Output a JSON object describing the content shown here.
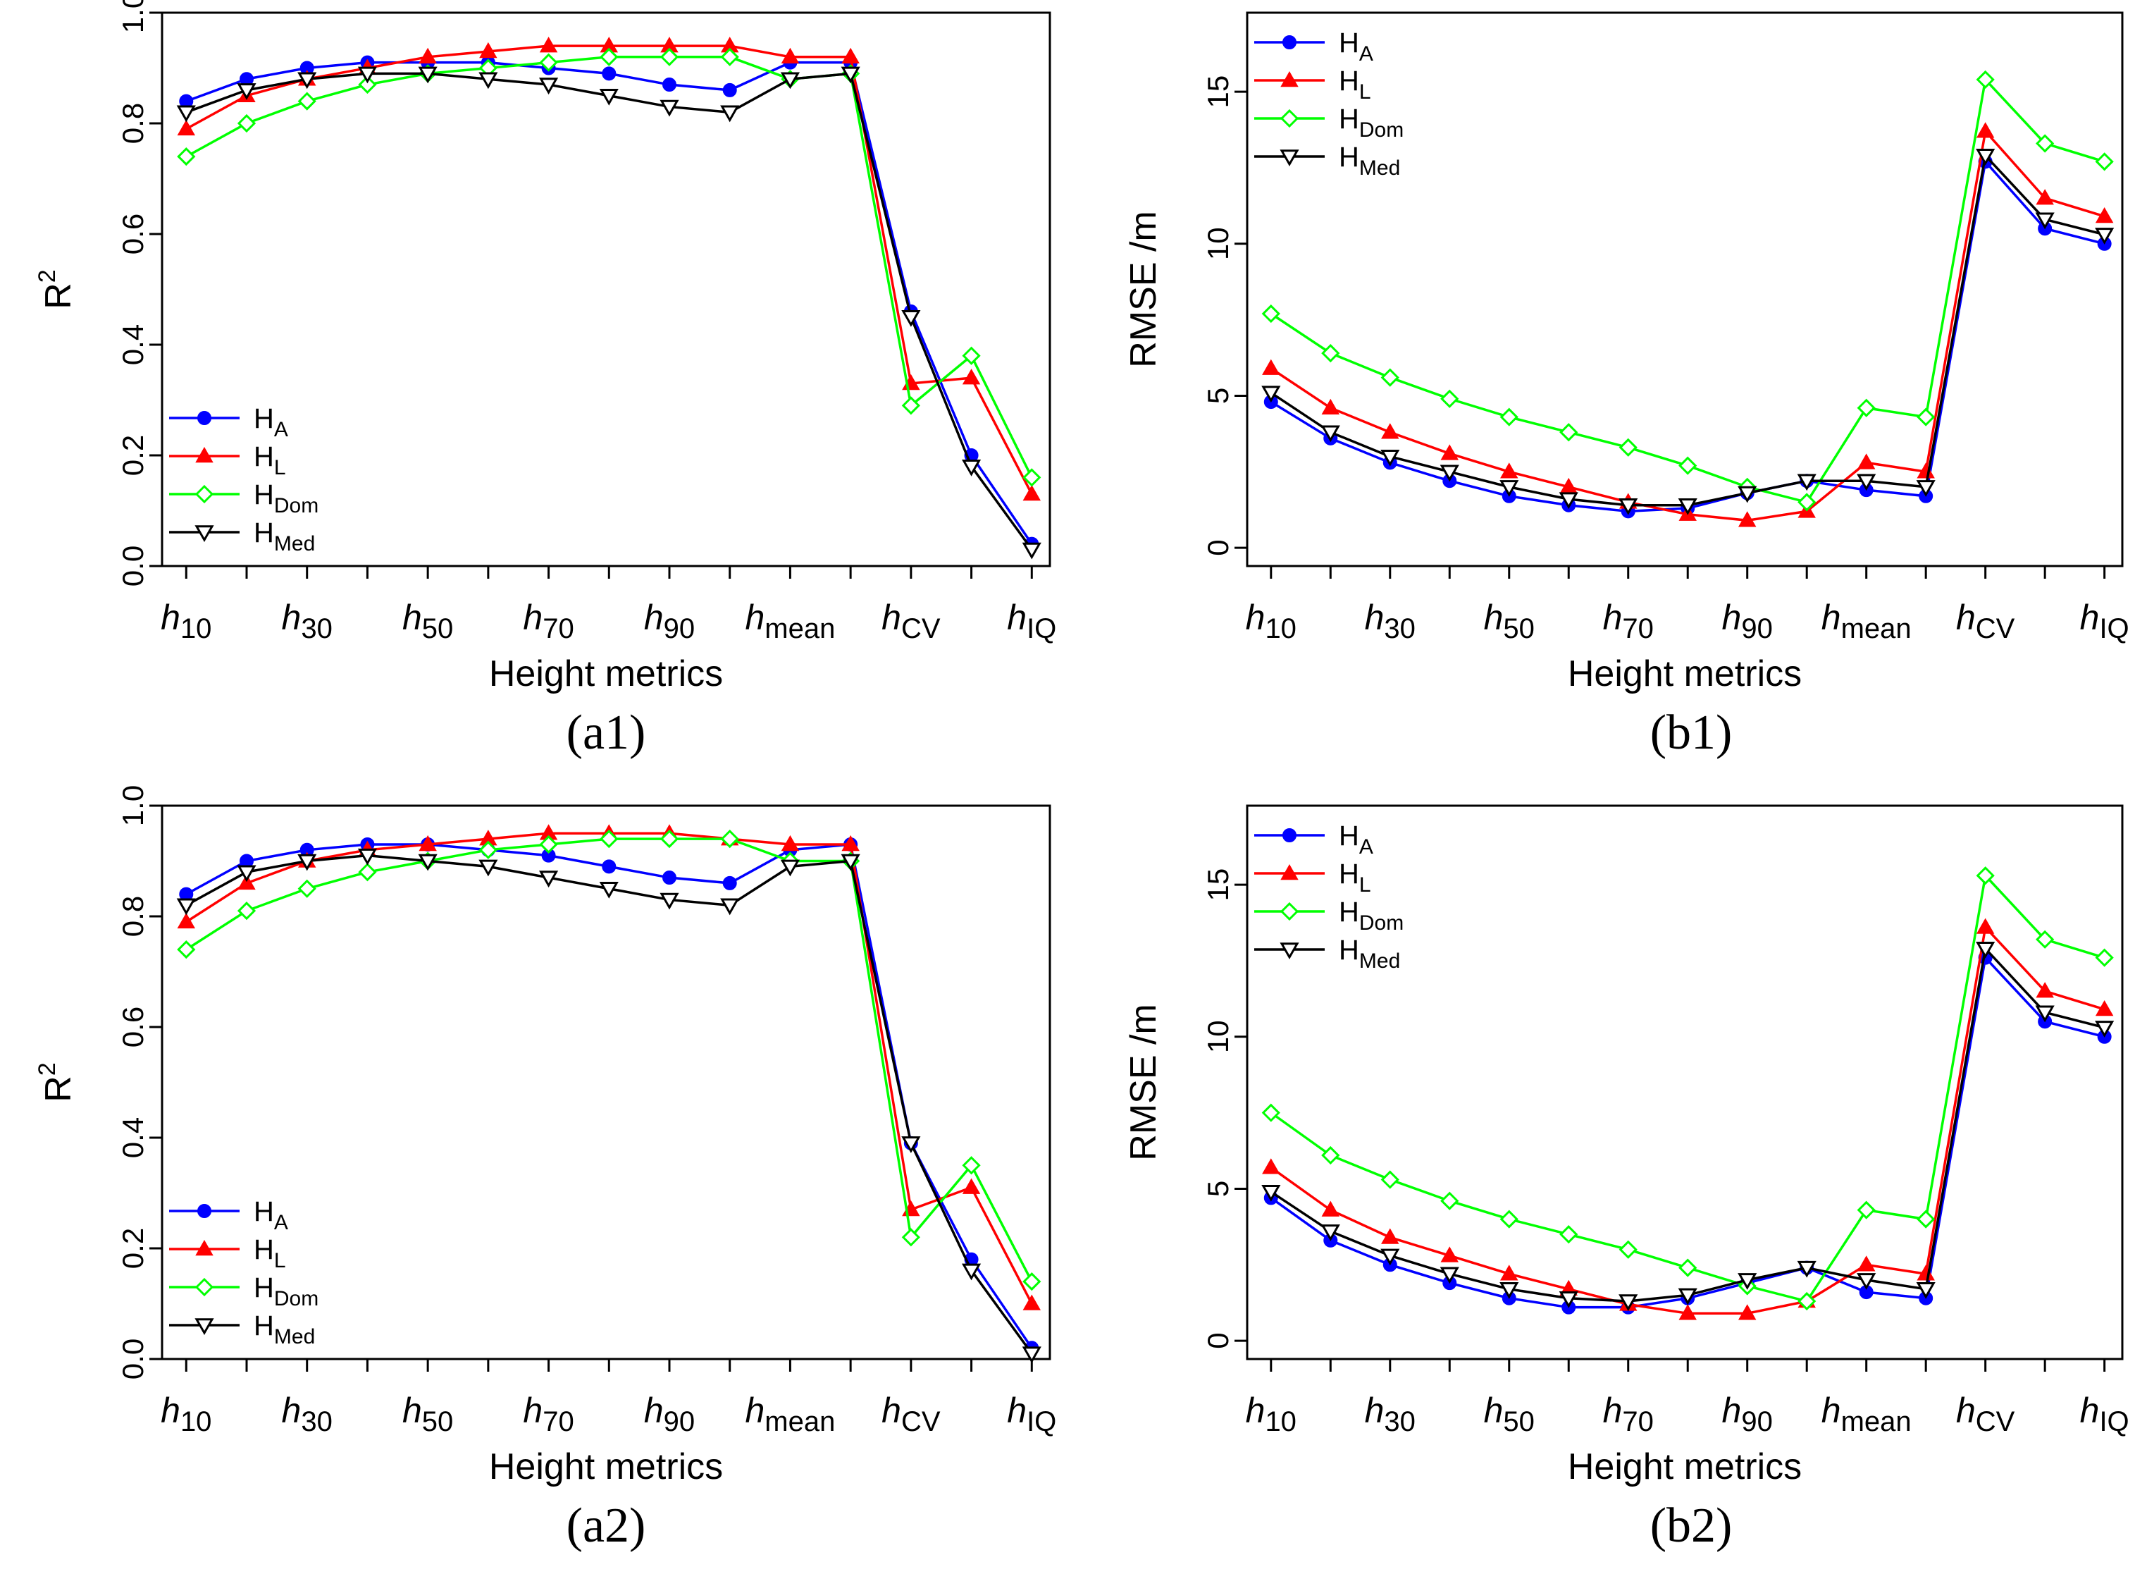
{
  "series_styles": [
    {
      "key": "HA",
      "color": "#0000FF",
      "marker": "circle"
    },
    {
      "key": "HL",
      "color": "#FF0000",
      "marker": "triangle-up"
    },
    {
      "key": "HDom",
      "color": "#00FF00",
      "marker": "diamond-open"
    },
    {
      "key": "HMed",
      "color": "#000000",
      "marker": "triangle-down-open"
    }
  ],
  "chart_data": [
    {
      "id": "a1",
      "type": "line",
      "caption": "(a1)",
      "xlabel": "Height metrics",
      "ylabel": {
        "base": "R",
        "sup": "2"
      },
      "ylim": [
        0,
        1
      ],
      "yticks": [
        "0.0",
        "0.2",
        "0.4",
        "0.6",
        "0.8",
        "1.0"
      ],
      "y_tick_values": [
        0,
        0.2,
        0.4,
        0.6,
        0.8,
        1.0
      ],
      "x": [
        1,
        2,
        3,
        4,
        5,
        6,
        7,
        8,
        9,
        10,
        11,
        12,
        13,
        14,
        15
      ],
      "xticks": [
        {
          "pos": 1,
          "base": "h",
          "sub": "10"
        },
        {
          "pos": 3,
          "base": "h",
          "sub": "30"
        },
        {
          "pos": 5,
          "base": "h",
          "sub": "50"
        },
        {
          "pos": 7,
          "base": "h",
          "sub": "70"
        },
        {
          "pos": 9,
          "base": "h",
          "sub": "90"
        },
        {
          "pos": 11,
          "base": "h",
          "sub": "mean"
        },
        {
          "pos": 13,
          "base": "h",
          "sub": "CV"
        },
        {
          "pos": 15,
          "base": "h",
          "sub": "IQ"
        }
      ],
      "legend_position": "bottom-left",
      "series": [
        {
          "name": "H",
          "sub": "A",
          "values": [
            0.84,
            0.88,
            0.9,
            0.91,
            0.91,
            0.91,
            0.9,
            0.89,
            0.87,
            0.86,
            0.91,
            0.91,
            0.46,
            0.2,
            0.04
          ]
        },
        {
          "name": "H",
          "sub": "L",
          "values": [
            0.79,
            0.85,
            0.88,
            0.9,
            0.92,
            0.93,
            0.94,
            0.94,
            0.94,
            0.94,
            0.92,
            0.92,
            0.33,
            0.34,
            0.13
          ]
        },
        {
          "name": "H",
          "sub": "Dom",
          "values": [
            0.74,
            0.8,
            0.84,
            0.87,
            0.89,
            0.9,
            0.91,
            0.92,
            0.92,
            0.92,
            0.88,
            0.89,
            0.29,
            0.38,
            0.16
          ]
        },
        {
          "name": "H",
          "sub": "Med",
          "values": [
            0.82,
            0.86,
            0.88,
            0.89,
            0.89,
            0.88,
            0.87,
            0.85,
            0.83,
            0.82,
            0.88,
            0.89,
            0.45,
            0.18,
            0.03
          ]
        }
      ]
    },
    {
      "id": "b1",
      "type": "line",
      "caption": "(b1)",
      "xlabel": "Height metrics",
      "ylabel": {
        "base": "RMSE /m",
        "sup": ""
      },
      "ylim": [
        -0.6,
        17.6
      ],
      "yticks": [
        "0",
        "5",
        "10",
        "15"
      ],
      "y_tick_values": [
        0,
        5,
        10,
        15
      ],
      "x": [
        1,
        2,
        3,
        4,
        5,
        6,
        7,
        8,
        9,
        10,
        11,
        12,
        13,
        14,
        15
      ],
      "xticks": [
        {
          "pos": 1,
          "base": "h",
          "sub": "10"
        },
        {
          "pos": 3,
          "base": "h",
          "sub": "30"
        },
        {
          "pos": 5,
          "base": "h",
          "sub": "50"
        },
        {
          "pos": 7,
          "base": "h",
          "sub": "70"
        },
        {
          "pos": 9,
          "base": "h",
          "sub": "90"
        },
        {
          "pos": 11,
          "base": "h",
          "sub": "mean"
        },
        {
          "pos": 13,
          "base": "h",
          "sub": "CV"
        },
        {
          "pos": 15,
          "base": "h",
          "sub": "IQ"
        }
      ],
      "legend_position": "top-left",
      "series": [
        {
          "name": "H",
          "sub": "A",
          "values": [
            4.8,
            3.6,
            2.8,
            2.2,
            1.7,
            1.4,
            1.2,
            1.3,
            1.8,
            2.2,
            1.9,
            1.7,
            12.7,
            10.5,
            10.0
          ]
        },
        {
          "name": "H",
          "sub": "L",
          "values": [
            5.9,
            4.6,
            3.8,
            3.1,
            2.5,
            2.0,
            1.5,
            1.1,
            0.9,
            1.2,
            2.8,
            2.5,
            13.7,
            11.5,
            10.9
          ]
        },
        {
          "name": "H",
          "sub": "Dom",
          "values": [
            7.7,
            6.4,
            5.6,
            4.9,
            4.3,
            3.8,
            3.3,
            2.7,
            2.0,
            1.5,
            4.6,
            4.3,
            15.4,
            13.3,
            12.7
          ]
        },
        {
          "name": "H",
          "sub": "Med",
          "values": [
            5.1,
            3.8,
            3.0,
            2.5,
            2.0,
            1.6,
            1.4,
            1.4,
            1.8,
            2.2,
            2.2,
            2.0,
            12.9,
            10.8,
            10.3
          ]
        }
      ]
    },
    {
      "id": "a2",
      "type": "line",
      "caption": "(a2)",
      "xlabel": "Height metrics",
      "ylabel": {
        "base": "R",
        "sup": "2"
      },
      "ylim": [
        0,
        1
      ],
      "yticks": [
        "0.0",
        "0.2",
        "0.4",
        "0.6",
        "0.8",
        "1.0"
      ],
      "y_tick_values": [
        0,
        0.2,
        0.4,
        0.6,
        0.8,
        1.0
      ],
      "x": [
        1,
        2,
        3,
        4,
        5,
        6,
        7,
        8,
        9,
        10,
        11,
        12,
        13,
        14,
        15
      ],
      "xticks": [
        {
          "pos": 1,
          "base": "h",
          "sub": "10"
        },
        {
          "pos": 3,
          "base": "h",
          "sub": "30"
        },
        {
          "pos": 5,
          "base": "h",
          "sub": "50"
        },
        {
          "pos": 7,
          "base": "h",
          "sub": "70"
        },
        {
          "pos": 9,
          "base": "h",
          "sub": "90"
        },
        {
          "pos": 11,
          "base": "h",
          "sub": "mean"
        },
        {
          "pos": 13,
          "base": "h",
          "sub": "CV"
        },
        {
          "pos": 15,
          "base": "h",
          "sub": "IQ"
        }
      ],
      "legend_position": "bottom-left",
      "series": [
        {
          "name": "H",
          "sub": "A",
          "values": [
            0.84,
            0.9,
            0.92,
            0.93,
            0.93,
            0.92,
            0.91,
            0.89,
            0.87,
            0.86,
            0.92,
            0.93,
            0.39,
            0.18,
            0.02
          ]
        },
        {
          "name": "H",
          "sub": "L",
          "values": [
            0.79,
            0.86,
            0.9,
            0.92,
            0.93,
            0.94,
            0.95,
            0.95,
            0.95,
            0.94,
            0.93,
            0.93,
            0.27,
            0.31,
            0.1
          ]
        },
        {
          "name": "H",
          "sub": "Dom",
          "values": [
            0.74,
            0.81,
            0.85,
            0.88,
            0.9,
            0.92,
            0.93,
            0.94,
            0.94,
            0.94,
            0.9,
            0.9,
            0.22,
            0.35,
            0.14
          ]
        },
        {
          "name": "H",
          "sub": "Med",
          "values": [
            0.82,
            0.88,
            0.9,
            0.91,
            0.9,
            0.89,
            0.87,
            0.85,
            0.83,
            0.82,
            0.89,
            0.9,
            0.39,
            0.16,
            0.01
          ]
        }
      ]
    },
    {
      "id": "b2",
      "type": "line",
      "caption": "(b2)",
      "xlabel": "Height metrics",
      "ylabel": {
        "base": "RMSE /m",
        "sup": ""
      },
      "ylim": [
        -0.6,
        17.6
      ],
      "yticks": [
        "0",
        "5",
        "10",
        "15"
      ],
      "y_tick_values": [
        0,
        5,
        10,
        15
      ],
      "x": [
        1,
        2,
        3,
        4,
        5,
        6,
        7,
        8,
        9,
        10,
        11,
        12,
        13,
        14,
        15
      ],
      "xticks": [
        {
          "pos": 1,
          "base": "h",
          "sub": "10"
        },
        {
          "pos": 3,
          "base": "h",
          "sub": "30"
        },
        {
          "pos": 5,
          "base": "h",
          "sub": "50"
        },
        {
          "pos": 7,
          "base": "h",
          "sub": "70"
        },
        {
          "pos": 9,
          "base": "h",
          "sub": "90"
        },
        {
          "pos": 11,
          "base": "h",
          "sub": "mean"
        },
        {
          "pos": 13,
          "base": "h",
          "sub": "CV"
        },
        {
          "pos": 15,
          "base": "h",
          "sub": "IQ"
        }
      ],
      "legend_position": "top-left",
      "series": [
        {
          "name": "H",
          "sub": "A",
          "values": [
            4.7,
            3.3,
            2.5,
            1.9,
            1.4,
            1.1,
            1.1,
            1.4,
            1.9,
            2.4,
            1.6,
            1.4,
            12.6,
            10.5,
            10.0
          ]
        },
        {
          "name": "H",
          "sub": "L",
          "values": [
            5.7,
            4.3,
            3.4,
            2.8,
            2.2,
            1.7,
            1.2,
            0.9,
            0.9,
            1.3,
            2.5,
            2.2,
            13.6,
            11.5,
            10.9
          ]
        },
        {
          "name": "H",
          "sub": "Dom",
          "values": [
            7.5,
            6.1,
            5.3,
            4.6,
            4.0,
            3.5,
            3.0,
            2.4,
            1.8,
            1.3,
            4.3,
            4.0,
            15.3,
            13.2,
            12.6
          ]
        },
        {
          "name": "H",
          "sub": "Med",
          "values": [
            4.9,
            3.6,
            2.8,
            2.2,
            1.7,
            1.4,
            1.3,
            1.5,
            2.0,
            2.4,
            2.0,
            1.7,
            12.9,
            10.8,
            10.3
          ]
        }
      ]
    }
  ]
}
